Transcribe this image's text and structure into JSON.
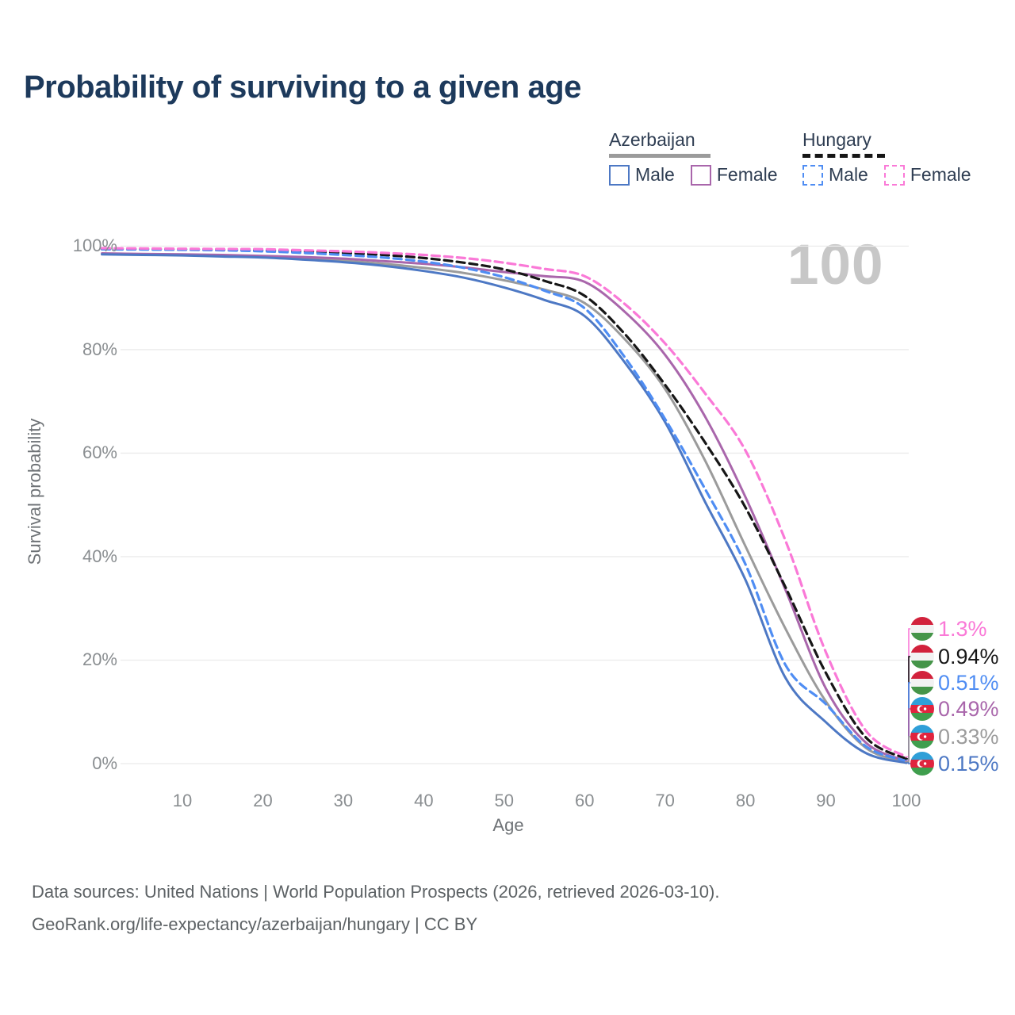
{
  "title": "Probability of surviving to a given age",
  "watermark": "100",
  "legend": {
    "groups": [
      {
        "name": "Azerbaijan",
        "line_style": "solid",
        "underline_color": "#9b9b9b",
        "items": [
          {
            "label": "Male",
            "color": "#4d78c4"
          },
          {
            "label": "Female",
            "color": "#a966ab"
          }
        ]
      },
      {
        "name": "Hungary",
        "line_style": "dashed",
        "underline_color": "#161616",
        "items": [
          {
            "label": "Male",
            "color": "#4f8df3"
          },
          {
            "label": "Female",
            "color": "#fa79d7"
          }
        ]
      }
    ]
  },
  "chart_data": {
    "type": "line",
    "title": "Probability of surviving to a given age",
    "xlabel": "Age",
    "ylabel": "Survival probability",
    "xlim": [
      0,
      100
    ],
    "ylim": [
      0,
      100
    ],
    "grid": "horizontal",
    "x_ticks": [
      10,
      20,
      30,
      40,
      50,
      60,
      70,
      80,
      90,
      100
    ],
    "y_tick_values": [
      0,
      20,
      40,
      60,
      80,
      100
    ],
    "y_tick_labels": [
      "0%",
      "20%",
      "40%",
      "60%",
      "80%",
      "100%"
    ],
    "x": [
      0,
      5,
      10,
      15,
      20,
      25,
      30,
      35,
      40,
      45,
      50,
      55,
      60,
      65,
      70,
      75,
      80,
      85,
      90,
      95,
      100
    ],
    "series": [
      {
        "id": "az-all",
        "name": "Azerbaijan",
        "country": "Azerbaijan",
        "sex": "all",
        "color": "#9b9b9b",
        "style": "solid",
        "values": [
          98.5,
          98.4,
          98.3,
          98.1,
          97.9,
          97.6,
          97.2,
          96.6,
          95.8,
          94.8,
          93.4,
          91.6,
          89.0,
          82.0,
          72.4,
          58.5,
          42.0,
          26.0,
          12.0,
          3.0,
          0.33
        ]
      },
      {
        "id": "az-female",
        "name": "Azerbaijan Female",
        "country": "Azerbaijan",
        "sex": "female",
        "color": "#a966ab",
        "style": "solid",
        "values": [
          98.6,
          98.5,
          98.4,
          98.3,
          98.1,
          97.9,
          97.6,
          97.1,
          96.6,
          95.9,
          95.0,
          94.2,
          93.1,
          87.3,
          79.0,
          67.0,
          51.5,
          33.5,
          14.5,
          4.0,
          0.49
        ]
      },
      {
        "id": "az-male",
        "name": "Azerbaijan Male",
        "country": "Azerbaijan",
        "sex": "male",
        "color": "#4d78c4",
        "style": "solid",
        "values": [
          98.4,
          98.3,
          98.2,
          98.0,
          97.8,
          97.4,
          96.9,
          96.2,
          95.2,
          93.9,
          92.0,
          89.6,
          86.5,
          77.5,
          66.0,
          50.5,
          35.5,
          16.5,
          8.0,
          2.0,
          0.15
        ]
      },
      {
        "id": "hu-all",
        "name": "Hungary",
        "country": "Hungary",
        "sex": "all",
        "color": "#161616",
        "style": "dashed",
        "values": [
          99.5,
          99.45,
          99.4,
          99.3,
          99.2,
          99.0,
          98.7,
          98.3,
          97.7,
          96.8,
          95.5,
          93.3,
          90.4,
          83.0,
          73.2,
          62.0,
          49.5,
          34.0,
          17.5,
          5.0,
          0.94
        ]
      },
      {
        "id": "hu-male",
        "name": "Hungary Male",
        "country": "Hungary",
        "sex": "male",
        "color": "#4f8df3",
        "style": "dashed",
        "values": [
          99.4,
          99.35,
          99.3,
          99.2,
          99.0,
          98.7,
          98.3,
          97.8,
          97.0,
          95.8,
          94.0,
          91.4,
          88.0,
          78.5,
          66.6,
          53.0,
          38.5,
          19.0,
          11.5,
          3.3,
          0.51
        ]
      },
      {
        "id": "hu-female",
        "name": "Hungary Female",
        "country": "Hungary",
        "sex": "female",
        "color": "#fa79d7",
        "style": "dashed",
        "values": [
          99.6,
          99.55,
          99.5,
          99.45,
          99.4,
          99.2,
          99.0,
          98.7,
          98.3,
          97.7,
          96.8,
          95.6,
          94.2,
          88.8,
          81.2,
          71.5,
          60.5,
          43.0,
          21.5,
          6.3,
          1.3
        ]
      }
    ],
    "end_labels": [
      {
        "text": "1.3%",
        "series": "hu-female",
        "flag": "hungary"
      },
      {
        "text": "0.94%",
        "series": "hu-all",
        "flag": "hungary"
      },
      {
        "text": "0.51%",
        "series": "hu-male",
        "flag": "hungary"
      },
      {
        "text": "0.49%",
        "series": "az-female",
        "flag": "azerbaijan"
      },
      {
        "text": "0.33%",
        "series": "az-all",
        "flag": "azerbaijan"
      },
      {
        "text": "0.15%",
        "series": "az-male",
        "flag": "azerbaijan"
      }
    ]
  },
  "flags": {
    "hungary": {
      "stripes": [
        "#d2223c",
        "#f2f2f2",
        "#459549"
      ]
    },
    "azerbaijan": {
      "stripes": [
        "#2f9fd8",
        "#e0243e",
        "#3f9e4d"
      ],
      "crescent": "#ffffff"
    }
  },
  "footer": {
    "line1": "Data sources: United Nations | World Population Prospects (2026, retrieved 2026-03-10).",
    "line2": "GeoRank.org/life-expectancy/azerbaijan/hungary | CC BY"
  }
}
